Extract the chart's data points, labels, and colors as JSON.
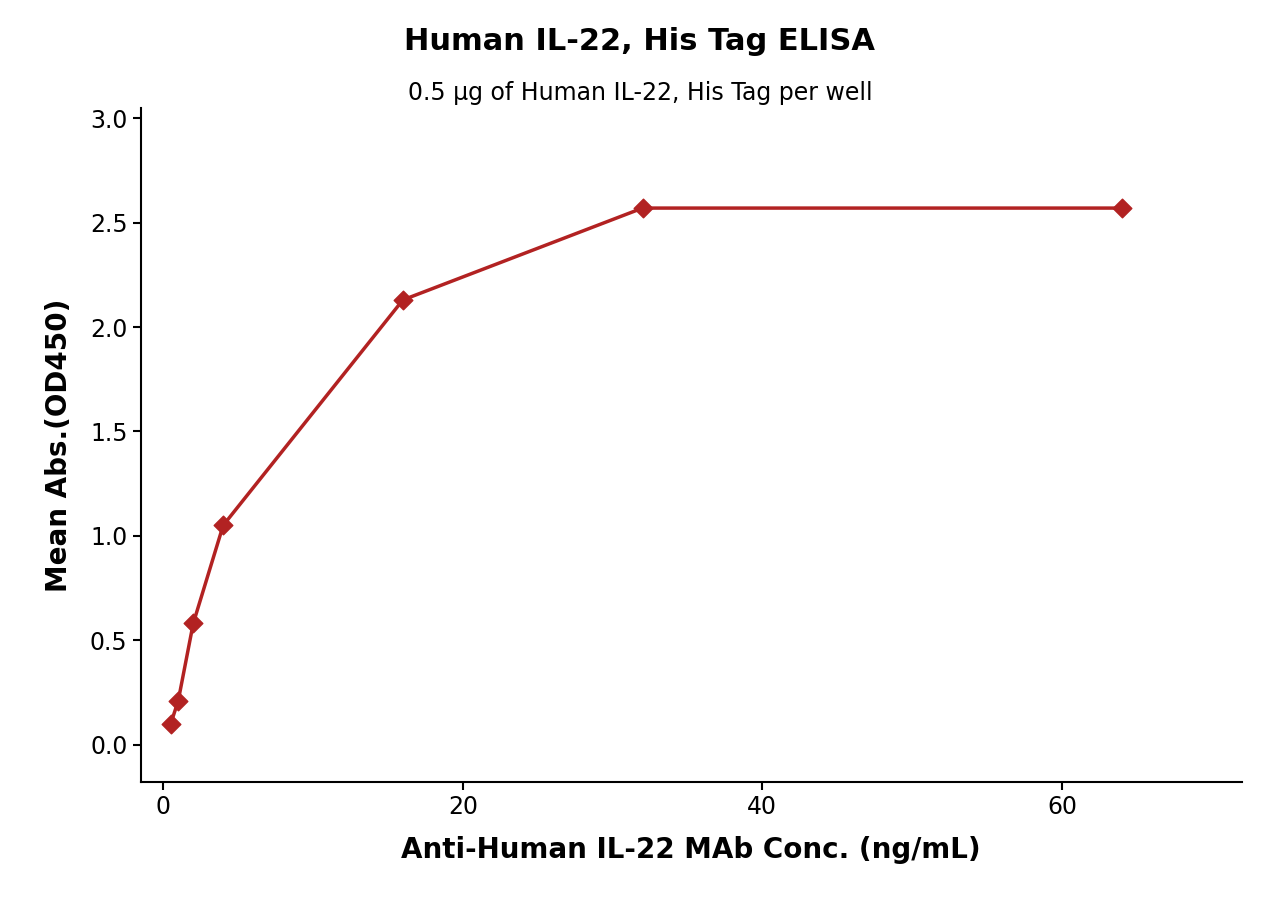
{
  "title": "Human IL-22, His Tag ELISA",
  "subtitle": "0.5 μg of Human IL-22, His Tag per well",
  "xlabel": "Anti-Human IL-22 MAb Conc. (ng/mL)",
  "ylabel": "Mean Abs.(OD450)",
  "x_data": [
    0.5,
    1.0,
    2.0,
    4.0,
    16.0,
    32.0,
    64.0
  ],
  "y_data": [
    0.1,
    0.21,
    0.58,
    1.05,
    2.13,
    2.57,
    2.57
  ],
  "xlim": [
    -1.5,
    72
  ],
  "ylim": [
    -0.18,
    3.05
  ],
  "xticks": [
    0,
    20,
    40,
    60
  ],
  "yticks": [
    0.0,
    0.5,
    1.0,
    1.5,
    2.0,
    2.5,
    3.0
  ],
  "curve_color": "#B22222",
  "marker_color": "#B22222",
  "background_color": "#FFFFFF",
  "title_fontsize": 22,
  "subtitle_fontsize": 17,
  "axis_label_fontsize": 20,
  "tick_fontsize": 17
}
